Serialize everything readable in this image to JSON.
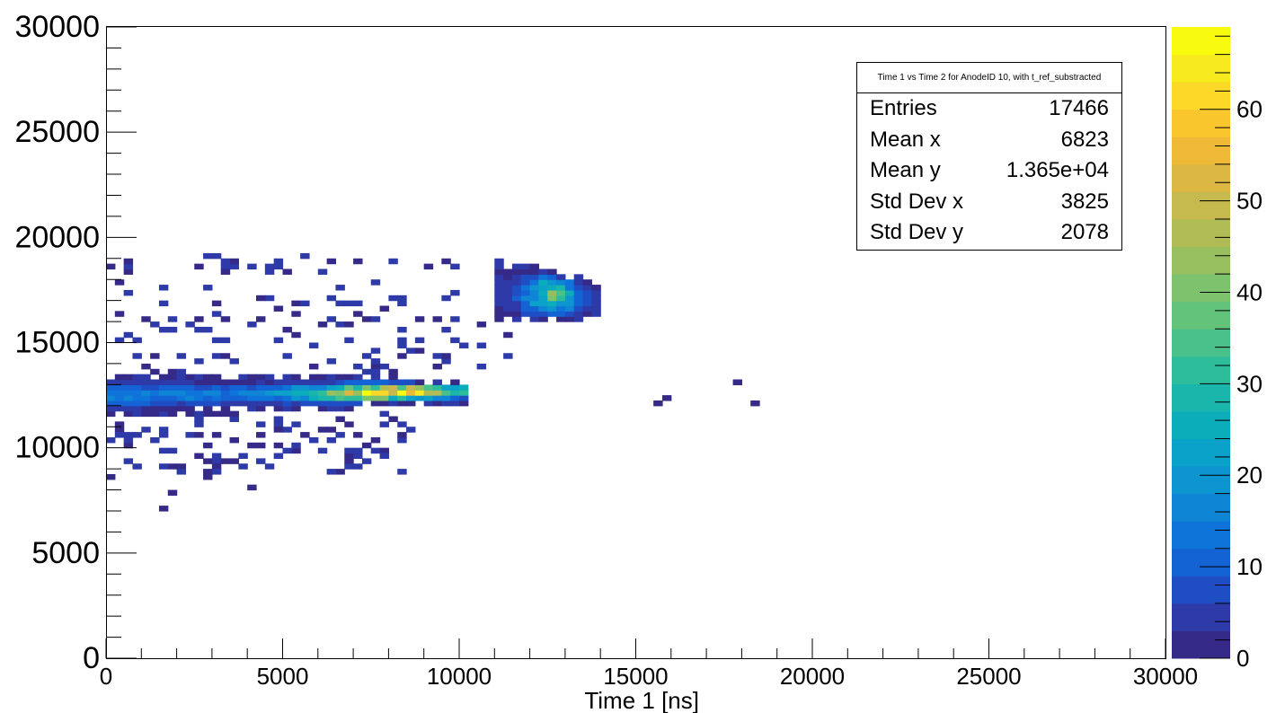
{
  "chart_data": {
    "type": "heatmap",
    "title": "Time 1 vs Time 2 for AnodeID 10, with t_ref_substracted",
    "xlabel": "Time 1 [ns]",
    "ylabel": "",
    "xlim": [
      0,
      30000
    ],
    "ylim": [
      0,
      30000
    ],
    "x_ticks": [
      "0",
      "5000",
      "10000",
      "15000",
      "20000",
      "25000",
      "30000"
    ],
    "y_ticks": [
      "0",
      "5000",
      "10000",
      "15000",
      "20000",
      "25000",
      "30000"
    ],
    "z_range": [
      0,
      69
    ],
    "colorbar_ticks": [
      "0",
      "10",
      "20",
      "30",
      "40",
      "50",
      "60"
    ],
    "bin_size": 250,
    "colormap": [
      "#352a87",
      "#2d3aa8",
      "#1f4ec4",
      "#1463d4",
      "#0f74d9",
      "#0e86d5",
      "#0d95cf",
      "#0aa2c9",
      "#0badba",
      "#1ab6ac",
      "#2ebd9b",
      "#4ac18a",
      "#64c37b",
      "#7dc26c",
      "#97bf5f",
      "#b0bc56",
      "#c6b94e",
      "#dcb743",
      "#eeb937",
      "#fac62d",
      "#fcd829",
      "#f7eb1f",
      "#f9fb0e"
    ],
    "regions": [
      {
        "name": "main-band",
        "x": [
          0,
          10200
        ],
        "y_center": [
          12500,
          12700
        ],
        "y_halfwidth": [
          500,
          950
        ],
        "peak_count": 64
      },
      {
        "name": "upper-cluster",
        "x": [
          11000,
          14000
        ],
        "y_center": [
          17400,
          17100
        ],
        "y_halfwidth": [
          1400,
          800
        ],
        "peak_count": 35
      },
      {
        "name": "sparse-points",
        "count": 220
      }
    ],
    "isolated_points": [
      [
        15650,
        12100
      ],
      [
        15900,
        12450
      ],
      [
        17850,
        13050
      ],
      [
        18300,
        12100
      ],
      [
        1650,
        7100
      ],
      [
        1850,
        7850
      ],
      [
        4050,
        8100
      ]
    ],
    "stats": {
      "title": "Time 1 vs Time 2 for AnodeID 10, with t_ref_substracted",
      "rows": [
        {
          "label": "Entries",
          "value": "17466"
        },
        {
          "label": "Mean x",
          "value": "6823"
        },
        {
          "label": "Mean y",
          "value": "1.365e+04"
        },
        {
          "label": "Std Dev x",
          "value": "3825"
        },
        {
          "label": "Std Dev y",
          "value": "2078"
        }
      ]
    }
  }
}
